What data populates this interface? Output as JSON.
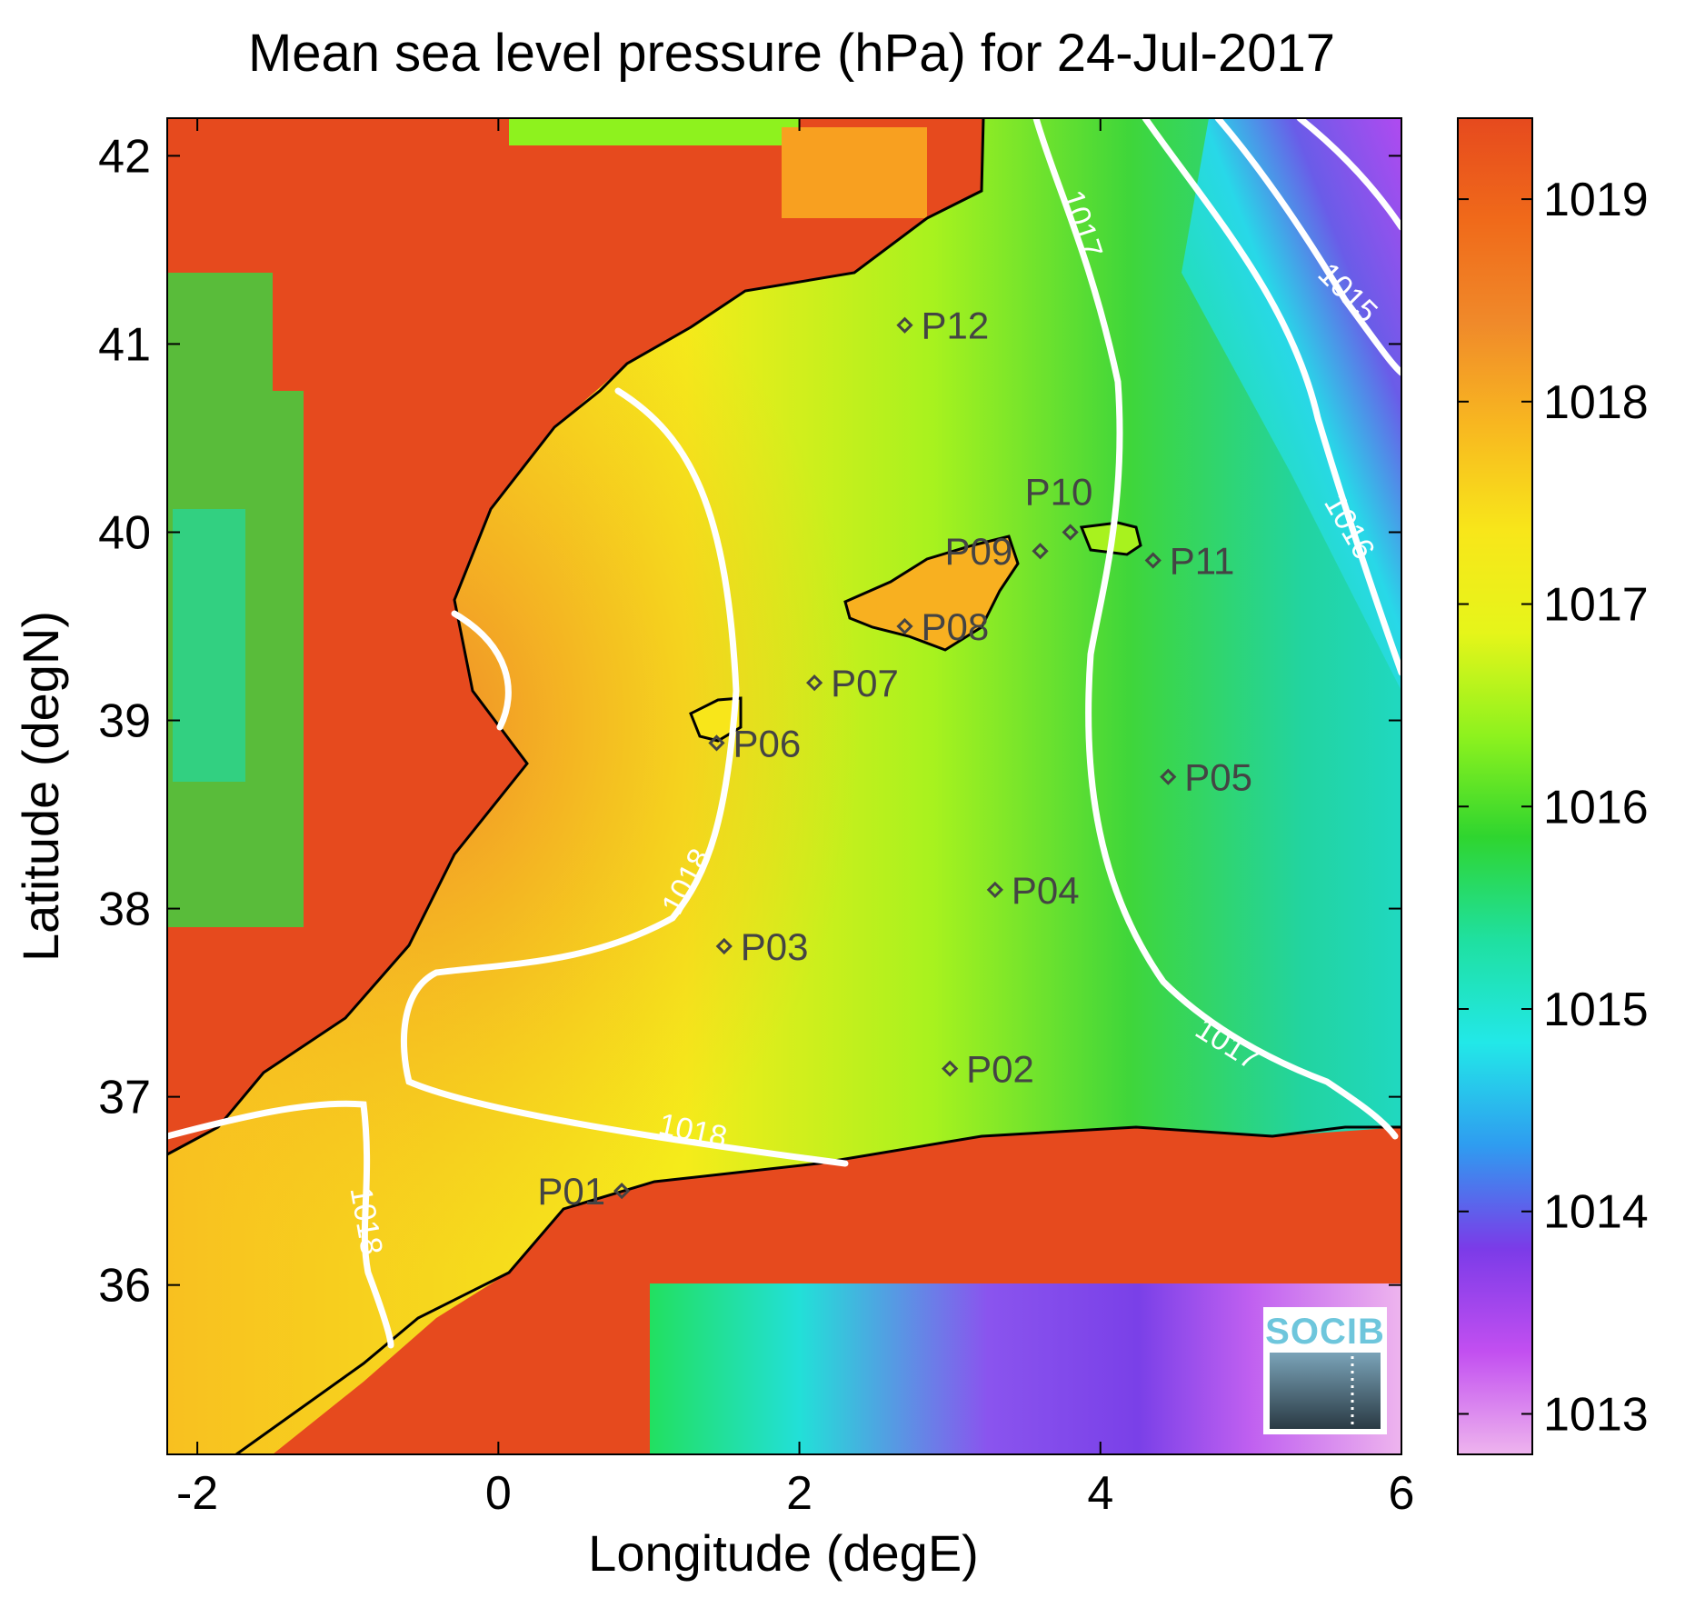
{
  "title": "Mean sea level pressure (hPa) for 24-Jul-2017",
  "xlabel": "Longitude (degE)",
  "ylabel": "Latitude (degN)",
  "chart_data": {
    "type": "heatmap",
    "x_range": [
      -2.2,
      6.0
    ],
    "y_range": [
      35.1,
      42.2
    ],
    "x_ticks": [
      -2,
      0,
      2,
      4,
      6
    ],
    "y_ticks": [
      36,
      37,
      38,
      39,
      40,
      41,
      42
    ],
    "x_tick_labels": [
      "-2",
      "0",
      "2",
      "4",
      "6"
    ],
    "y_tick_labels": [
      "36",
      "37",
      "38",
      "39",
      "40",
      "41",
      "42"
    ],
    "colorbar": {
      "range": [
        1012.8,
        1019.4
      ],
      "ticks": [
        1013,
        1014,
        1015,
        1016,
        1017,
        1018,
        1019
      ],
      "tick_labels": [
        "1013",
        "1014",
        "1015",
        "1016",
        "1017",
        "1018",
        "1019"
      ],
      "colormap": [
        "#eeb4ee",
        "#c24ff0",
        "#7b3be8",
        "#2f9cf0",
        "#22e8e8",
        "#1fe0a0",
        "#2fd52f",
        "#8ef21e",
        "#e6f51a",
        "#f8e61a",
        "#f8b820",
        "#f08a2a",
        "#f06a1a",
        "#e64a1e"
      ]
    },
    "contour_labels": [
      "1018",
      "1018",
      "1018",
      "1017",
      "1017",
      "1016",
      "1015"
    ],
    "stations": [
      {
        "name": "P01",
        "lon": 0.82,
        "lat": 36.5
      },
      {
        "name": "P02",
        "lon": 3.0,
        "lat": 37.15
      },
      {
        "name": "P03",
        "lon": 1.5,
        "lat": 37.8
      },
      {
        "name": "P04",
        "lon": 3.3,
        "lat": 38.1
      },
      {
        "name": "P05",
        "lon": 4.45,
        "lat": 38.7
      },
      {
        "name": "P06",
        "lon": 1.45,
        "lat": 38.88
      },
      {
        "name": "P07",
        "lon": 2.1,
        "lat": 39.2
      },
      {
        "name": "P08",
        "lon": 2.7,
        "lat": 39.5
      },
      {
        "name": "P09",
        "lon": 3.6,
        "lat": 39.9
      },
      {
        "name": "P10",
        "lon": 3.8,
        "lat": 40.0
      },
      {
        "name": "P11",
        "lon": 4.35,
        "lat": 39.85
      },
      {
        "name": "P12",
        "lon": 2.7,
        "lat": 41.1
      }
    ]
  },
  "logo": {
    "text": "SOCIB"
  }
}
